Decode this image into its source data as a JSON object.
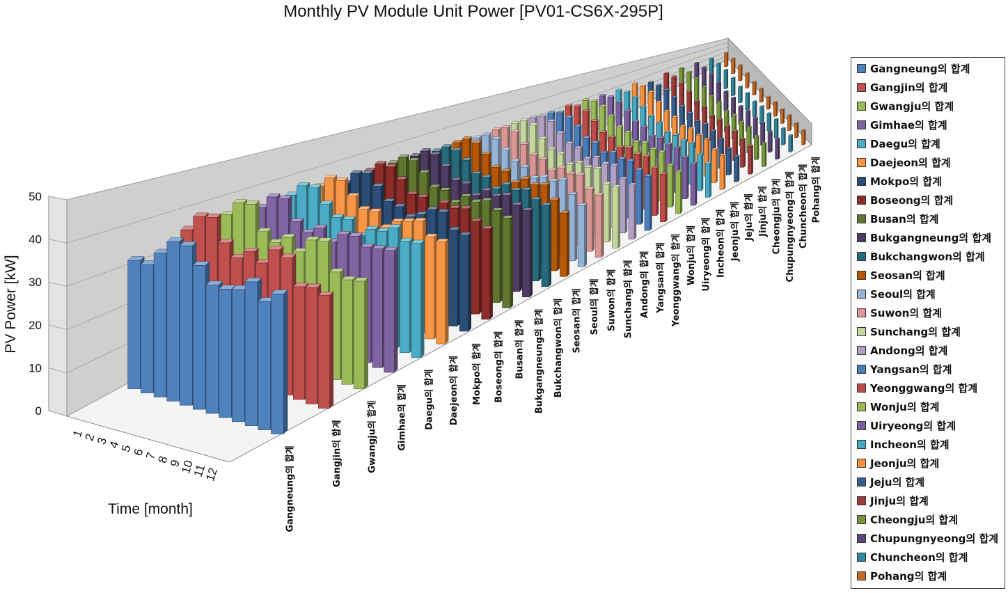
{
  "chart_data": {
    "type": "bar",
    "title": "Monthly PV Module Unit Power [PV01-CS6X-295P]",
    "ylabel": "PV Power [kW]",
    "xlabel": "Time [month]",
    "ylim": [
      0,
      50
    ],
    "yticks": [
      "0",
      "10",
      "20",
      "30",
      "40",
      "50"
    ],
    "months": [
      "1",
      "2",
      "3",
      "4",
      "5",
      "6",
      "7",
      "8",
      "9",
      "10",
      "11",
      "12"
    ],
    "legend_position": "right",
    "series": [
      {
        "name": "Gangneung의 합계",
        "label": "Gangneung의 합계",
        "color": "#4f81bd",
        "values": [
          33,
          33,
          37,
          41,
          41,
          37,
          33,
          33,
          34,
          37,
          33,
          36
        ]
      },
      {
        "name": "Gangjin의 합계",
        "label": "Gangjin의 합계",
        "color": "#c0504d",
        "values": [
          37,
          42,
          43,
          37,
          34,
          37,
          35,
          40,
          39,
          32,
          33,
          32
        ]
      },
      {
        "name": "Gwangju의 합계",
        "label": "Gwangju의 합계",
        "color": "#9bbb59",
        "values": [
          38,
          43,
          44,
          37,
          35,
          38,
          35,
          40,
          41,
          33,
          32,
          33
        ]
      },
      {
        "name": "Gimhae의 합계",
        "label": "Gimhae의 합계",
        "color": "#8064a2",
        "values": [
          37,
          42,
          43,
          37,
          35,
          38,
          35,
          39,
          40,
          38,
          39,
          40
        ]
      },
      {
        "name": "Daegu의 합계",
        "label": "Daegu의 합계",
        "color": "#4bacc6",
        "values": [
          38,
          43,
          44,
          40,
          37,
          38,
          34,
          38,
          39,
          42,
          39,
          40
        ]
      },
      {
        "name": "Daejeon의 합계",
        "label": "Daejeon의 합계",
        "color": "#f79646",
        "values": [
          38,
          43,
          44,
          40,
          37,
          38,
          34,
          38,
          40,
          42,
          38,
          38
        ]
      },
      {
        "name": "Mokpo의 합계",
        "label": "Mokpo의 합계",
        "color": "#2c4d75",
        "values": [
          36,
          42,
          44,
          41,
          37,
          37,
          35,
          38,
          42,
          43,
          38,
          38
        ]
      },
      {
        "name": "Boseong의 합계",
        "label": "Boseong의 합계",
        "color": "#8c2d2a",
        "values": [
          38,
          43,
          44,
          41,
          37,
          38,
          35,
          40,
          40,
          42,
          39,
          38
        ]
      },
      {
        "name": "Busan의 합계",
        "label": "Busan의 합계",
        "color": "#5f7530",
        "values": [
          38,
          43,
          44,
          41,
          37,
          38,
          35,
          40,
          40,
          43,
          41,
          40
        ]
      },
      {
        "name": "Bukgangneung의 합계",
        "label": "Bukgangneung의 합계",
        "color": "#4d3b62",
        "values": [
          38,
          43,
          44,
          41,
          37,
          38,
          35,
          40,
          40,
          43,
          41,
          41
        ]
      },
      {
        "name": "Bukchangwon의 합계",
        "label": "Bukchangwon의 합계",
        "color": "#276a7c",
        "values": [
          37,
          42,
          43,
          41,
          37,
          38,
          35,
          40,
          40,
          43,
          41,
          41
        ]
      },
      {
        "name": "Seosan의 합계",
        "label": "Seosan의 합계",
        "color": "#b65708",
        "values": [
          38,
          43,
          44,
          41,
          37,
          38,
          35,
          40,
          40,
          43,
          38,
          34
        ]
      },
      {
        "name": "Seoul의 합계",
        "label": "Seoul의 합계",
        "color": "#95b3d7",
        "values": [
          37,
          42,
          43,
          40,
          37,
          37,
          34,
          38,
          39,
          43,
          38,
          35
        ]
      },
      {
        "name": "Suwon의 합계",
        "label": "Suwon의 합계",
        "color": "#d99694",
        "values": [
          38,
          43,
          44,
          40,
          37,
          38,
          35,
          40,
          40,
          43,
          38,
          38
        ]
      },
      {
        "name": "Sunchang의 합계",
        "label": "Sunchang의 합계",
        "color": "#c3d69b",
        "values": [
          38,
          44,
          45,
          40,
          37,
          38,
          35,
          40,
          41,
          44,
          38,
          40
        ]
      },
      {
        "name": "Andong의 합계",
        "label": "Andong의 합계",
        "color": "#b2a1c7",
        "values": [
          38,
          43,
          44,
          40,
          37,
          38,
          35,
          40,
          40,
          43,
          38,
          38
        ]
      },
      {
        "name": "Yangsan의 합계",
        "label": "Yangsan의 합계",
        "color": "#4a7ebb",
        "values": [
          37,
          42,
          43,
          41,
          37,
          38,
          35,
          40,
          40,
          43,
          41,
          41
        ]
      },
      {
        "name": "Yeonggwang의 합계",
        "label": "Yeonggwang의 합계",
        "color": "#be4b48",
        "values": [
          38,
          43,
          44,
          41,
          37,
          38,
          35,
          40,
          40,
          43,
          39,
          39
        ]
      },
      {
        "name": "Wonju의 합계",
        "label": "Wonju의 합계",
        "color": "#98b954",
        "values": [
          38,
          43,
          44,
          41,
          37,
          38,
          35,
          40,
          40,
          43,
          37,
          37
        ]
      },
      {
        "name": "Uiryeong의 합계",
        "label": "Uiryeong의 합계",
        "color": "#7d60a0",
        "values": [
          37,
          42,
          43,
          41,
          37,
          38,
          35,
          40,
          40,
          43,
          40,
          40
        ]
      },
      {
        "name": "Incheon의 합계",
        "label": "Incheon의 합계",
        "color": "#46aac5",
        "values": [
          37,
          42,
          43,
          40,
          37,
          37,
          34,
          38,
          39,
          43,
          38,
          36
        ]
      },
      {
        "name": "Jeonju의 합계",
        "label": "Jeonju의 합계",
        "color": "#f69240",
        "values": [
          38,
          43,
          44,
          40,
          37,
          38,
          35,
          40,
          40,
          43,
          39,
          40
        ]
      },
      {
        "name": "Jeju의 합계",
        "label": "Jeju의 합계",
        "color": "#375d8a",
        "values": [
          33,
          38,
          41,
          40,
          37,
          37,
          35,
          40,
          40,
          38,
          34,
          33
        ]
      },
      {
        "name": "Jinju의 합계",
        "label": "Jinju의 합계",
        "color": "#a03c39",
        "values": [
          38,
          43,
          44,
          41,
          37,
          38,
          35,
          40,
          40,
          43,
          41,
          41
        ]
      },
      {
        "name": "Cheongju의 합계",
        "label": "Cheongju의 합계",
        "color": "#769739",
        "values": [
          38,
          43,
          44,
          41,
          37,
          38,
          35,
          40,
          40,
          43,
          39,
          39
        ]
      },
      {
        "name": "Chupungnyeong의 합계",
        "label": "Chupungnyeong의 합계",
        "color": "#5c4776",
        "values": [
          38,
          43,
          44,
          41,
          37,
          38,
          35,
          40,
          40,
          43,
          40,
          40
        ]
      },
      {
        "name": "Chuncheon의 합계",
        "label": "Chuncheon의 합계",
        "color": "#31859c",
        "values": [
          37,
          42,
          43,
          41,
          37,
          38,
          35,
          40,
          40,
          43,
          38,
          38
        ]
      },
      {
        "name": "Pohang의 합계",
        "label": "Pohang의 합계",
        "color": "#c06824",
        "values": [
          38,
          43,
          44,
          41,
          37,
          38,
          35,
          40,
          40,
          43,
          41,
          41
        ]
      }
    ]
  }
}
